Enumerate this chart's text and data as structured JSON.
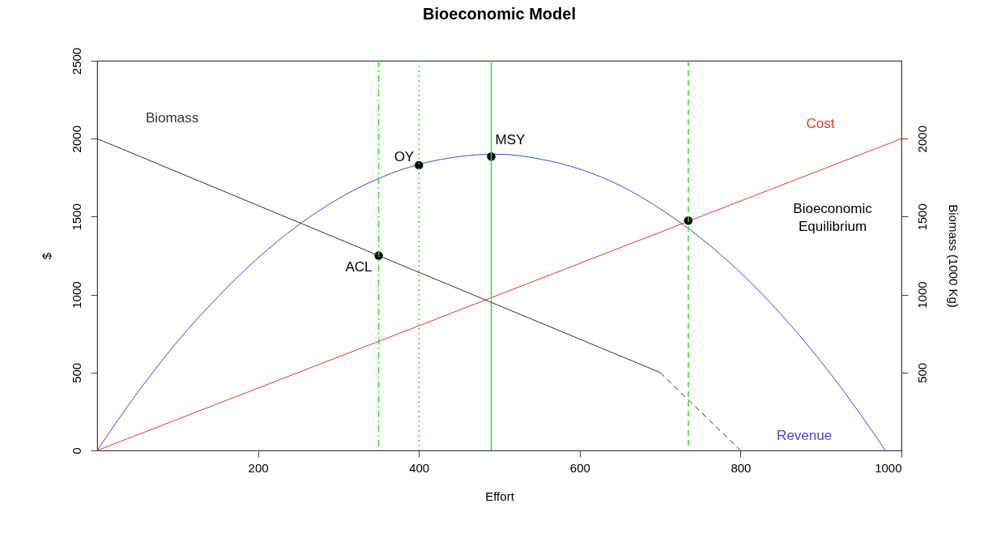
{
  "chart_data": {
    "type": "line",
    "title": "Bioeconomic Model",
    "xlabel": "Effort",
    "ylabel": "$",
    "y2label": "Biomass (1000 Kg)",
    "xlim": [
      0,
      1000
    ],
    "xticks": [
      200,
      400,
      600,
      800,
      1000
    ],
    "ylim": [
      0,
      2500
    ],
    "yticks": [
      0,
      500,
      1000,
      1500,
      2000,
      2500
    ],
    "y2lim": [
      0,
      2500
    ],
    "y2ticks": [
      500,
      1000,
      1500,
      2000
    ],
    "grid": false,
    "series": [
      {
        "name": "Biomass",
        "type": "line",
        "axis": "y2",
        "color": "#333333",
        "line_style": "solid",
        "marker": "none",
        "x": [
          0,
          700
        ],
        "values": [
          2000,
          500
        ]
      },
      {
        "type": "line",
        "axis": "y2",
        "color": "#333333",
        "line_style": "dashed",
        "marker": "none",
        "x": [
          700,
          800
        ],
        "values": [
          500,
          0
        ]
      },
      {
        "name": "Cost",
        "type": "line",
        "color": "#ee3333",
        "line_style": "solid",
        "marker": "none",
        "x": [
          0,
          1000
        ],
        "values": [
          0,
          2000
        ]
      },
      {
        "name": "Revenue",
        "type": "line",
        "color": "#4444ee",
        "line_style": "solid",
        "marker": "none",
        "x": [
          0,
          50,
          100,
          150,
          200,
          250,
          300,
          350,
          400,
          450,
          490,
          500,
          550,
          600,
          650,
          700,
          750,
          800,
          850,
          900,
          950,
          980
        ],
        "values": [
          0,
          370,
          700,
          985,
          1235,
          1445,
          1615,
          1745,
          1835,
          1885,
          1900,
          1900,
          1870,
          1805,
          1700,
          1550,
          1365,
          1140,
          875,
          570,
          225,
          0
        ]
      },
      {
        "type": "scatter",
        "color": "#000000",
        "marker": "circle",
        "x": [
          350,
          400,
          490,
          735
        ],
        "values": [
          1250,
          1830,
          1885,
          1475
        ]
      }
    ],
    "ref_lines": [
      {
        "axis": "x",
        "value": 350,
        "color": "#33dd33",
        "line_style": "dashdot"
      },
      {
        "axis": "x",
        "value": 400,
        "color": "#33dd33",
        "line_style": "dotted"
      },
      {
        "axis": "x",
        "value": 490,
        "color": "#33dd33",
        "line_style": "solid"
      },
      {
        "axis": "x",
        "value": 735,
        "color": "#33dd33",
        "line_style": "dashed"
      }
    ],
    "annotations": [
      {
        "text": "ACL",
        "x": 350,
        "y": 1250
      },
      {
        "text": "OY",
        "x": 400,
        "y": 1830
      },
      {
        "text": "MSY",
        "x": 490,
        "y": 1885
      },
      "Bioeconomic Equilibrium"
    ]
  }
}
